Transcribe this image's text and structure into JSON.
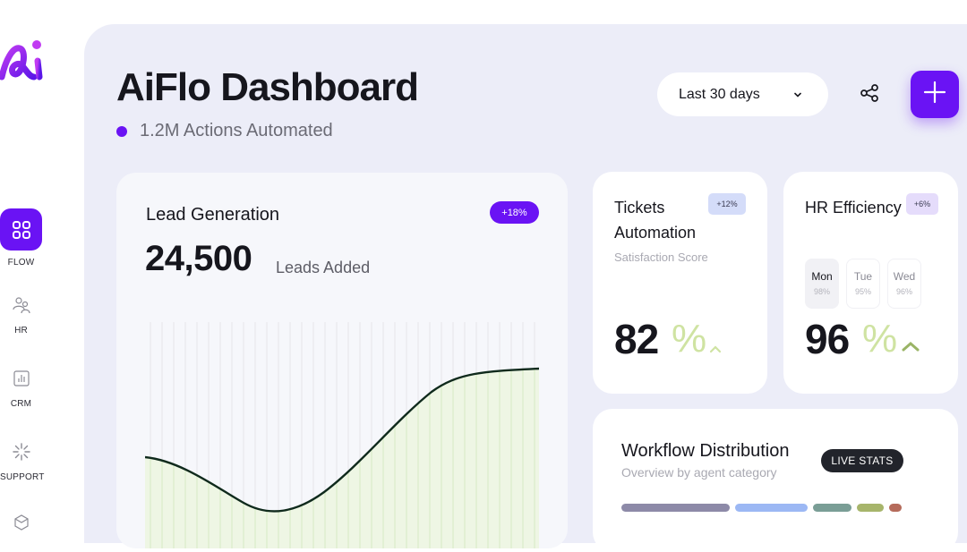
{
  "sidebar": {
    "items": [
      {
        "label": "FLOW",
        "icon": "grid-icon",
        "active": true
      },
      {
        "label": "HR",
        "icon": "people-icon",
        "active": false
      },
      {
        "label": "CRM",
        "icon": "bar-chart-icon",
        "active": false
      },
      {
        "label": "SUPPORT",
        "icon": "loader-icon",
        "active": false
      },
      {
        "label": "",
        "icon": "box-icon",
        "active": false
      }
    ]
  },
  "header": {
    "title": "AiFlo Dashboard",
    "subtitle": "1.2M Actions Automated",
    "date_range": "Last 30 days"
  },
  "lead_card": {
    "title": "Lead Generation",
    "badge": "+18%",
    "value": "24,500",
    "unit": "Leads Added"
  },
  "tickets_card": {
    "title": "Tickets Automation",
    "badge": "+12%",
    "subtitle": "Satisfaction Score",
    "value": "82",
    "percent_sign": "%"
  },
  "hr_card": {
    "title": "HR Efficiency",
    "badge": "+6%",
    "days": [
      {
        "name": "Mon",
        "value": "98%",
        "selected": true
      },
      {
        "name": "Tue",
        "value": "95%",
        "selected": false
      },
      {
        "name": "Wed",
        "value": "96%",
        "selected": false
      }
    ],
    "value": "96",
    "percent_sign": "%"
  },
  "workflow_card": {
    "title": "Workflow Distribution",
    "subtitle": "Overview by agent category",
    "badge": "LIVE STATS",
    "segments": [
      {
        "color": "#8d8aa8"
      },
      {
        "color": "#9cb8f4"
      },
      {
        "color": "#7a9e96"
      },
      {
        "color": "#a7b56b"
      },
      {
        "color": "#b56b5b"
      }
    ]
  },
  "colors": {
    "accent": "#6a13f4",
    "background": "#ecedf8",
    "percent_green": "#cfe3a2",
    "caret_green": "#9ab466"
  }
}
